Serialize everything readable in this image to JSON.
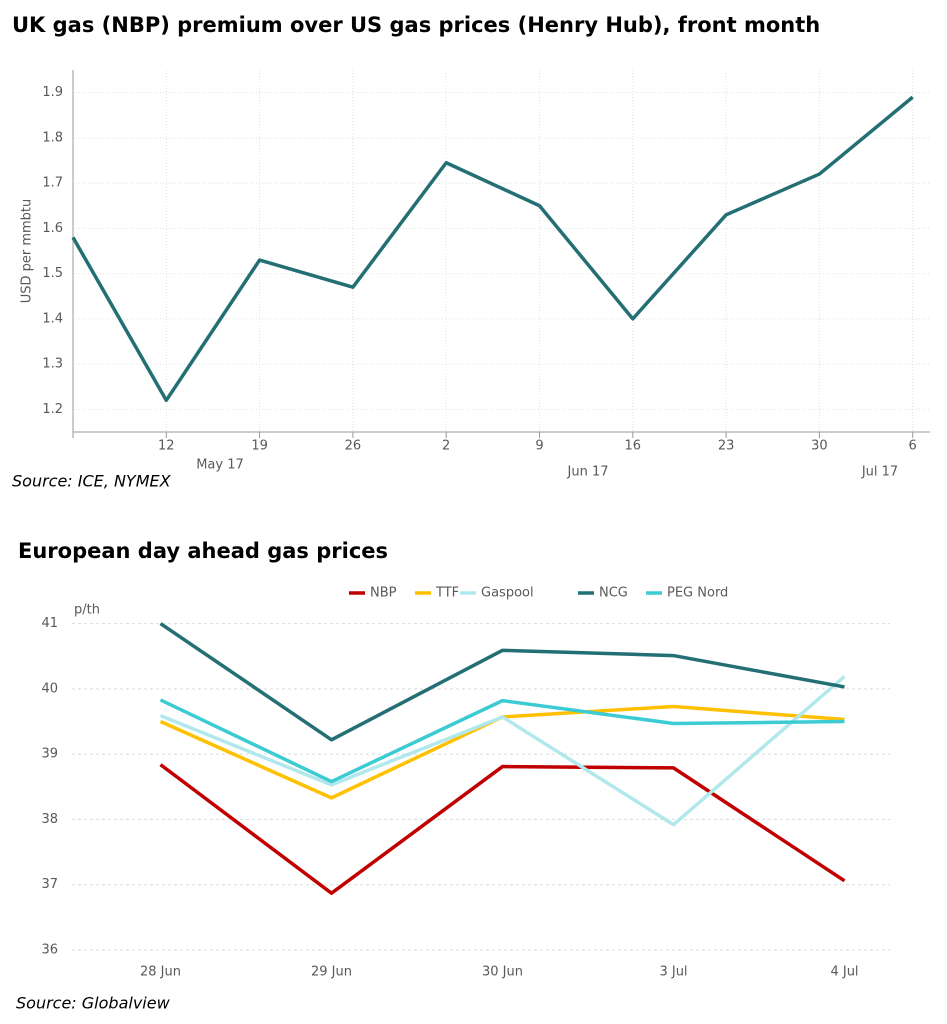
{
  "chart_data": [
    {
      "type": "line",
      "title": "UK gas (NBP) premium over US gas prices (Henry Hub), front month",
      "y_label": "USD per mmbtu",
      "categories": [
        null,
        "12",
        "19",
        "26",
        "2",
        "9",
        "16",
        "23",
        "30",
        "6"
      ],
      "month_labels": [
        "May 17",
        "Jun 17",
        "Jul 17"
      ],
      "values": [
        1.58,
        1.22,
        1.53,
        1.47,
        1.745,
        1.65,
        1.4,
        1.63,
        1.72,
        1.89
      ],
      "color": "#236f74",
      "ylim": [
        1.15,
        1.95
      ],
      "yticks": [
        1.2,
        1.3,
        1.4,
        1.5,
        1.6,
        1.7,
        1.8,
        1.9
      ],
      "grid": true,
      "source": "Source: ICE, NYMEX"
    },
    {
      "type": "line",
      "title": "European day ahead gas prices",
      "y_label": "p/th",
      "categories": [
        "28 Jun",
        "29 Jun",
        "30 Jun",
        "3 Jul",
        "4 Jul"
      ],
      "series": [
        {
          "name": "NBP",
          "color": "#c00000",
          "values": [
            38.84,
            36.87,
            38.81,
            38.79,
            37.06
          ]
        },
        {
          "name": "TTF",
          "color": "#ffc000",
          "values": [
            39.5,
            38.33,
            39.57,
            39.73,
            39.53
          ]
        },
        {
          "name": "Gaspool",
          "color": "#b0e8ec",
          "values": [
            39.59,
            38.53,
            39.57,
            37.92,
            40.19
          ]
        },
        {
          "name": "NCG",
          "color": "#236f74",
          "values": [
            41.0,
            39.22,
            40.59,
            40.51,
            40.03
          ]
        },
        {
          "name": "PEG Nord",
          "color": "#3ccbd3",
          "values": [
            39.83,
            38.58,
            39.82,
            39.47,
            39.5
          ]
        }
      ],
      "ylim": [
        36,
        41.3
      ],
      "yticks": [
        36,
        37,
        38,
        39,
        40,
        41
      ],
      "grid": true,
      "legend": "top",
      "source": "Source: Globalview"
    }
  ]
}
